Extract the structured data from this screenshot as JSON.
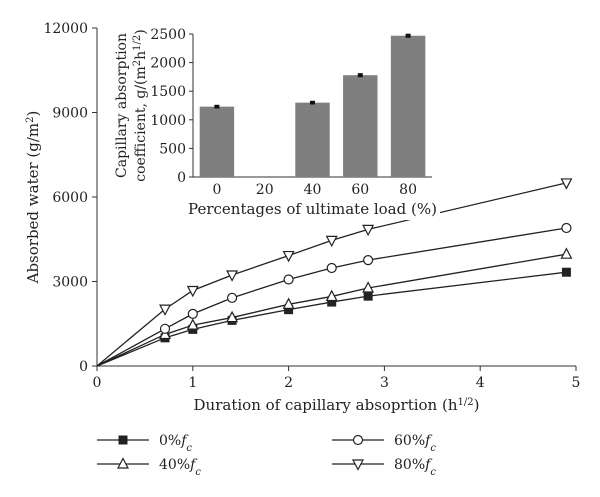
{
  "chart_data": [
    {
      "type": "line",
      "xlabel_main": "Duration of capillary absoprtion (h",
      "xlabel_sup": "1/2",
      "xlabel_end": ")",
      "ylabel_main": "Absorbed water (g/m",
      "ylabel_sup": "2",
      "ylabel_end": ")",
      "xlim": [
        0,
        5
      ],
      "ylim": [
        0,
        12000
      ],
      "xticks": [
        0,
        1,
        2,
        3,
        4,
        5
      ],
      "yticks": [
        0,
        3000,
        6000,
        9000,
        12000
      ],
      "grid": false,
      "legend_position": "bottom",
      "series": [
        {
          "name": "0%",
          "name_sub": "c",
          "marker": "square",
          "x": [
            0,
            0.71,
            1.0,
            1.41,
            2.0,
            2.45,
            2.83,
            4.9
          ],
          "y": [
            0,
            1000,
            1300,
            1620,
            2000,
            2270,
            2480,
            3330
          ]
        },
        {
          "name": "40%",
          "name_sub": "c",
          "marker": "triangle-up",
          "x": [
            0,
            0.71,
            1.0,
            1.41,
            2.0,
            2.45,
            2.83,
            4.9
          ],
          "y": [
            0,
            1120,
            1450,
            1720,
            2190,
            2470,
            2770,
            3970
          ]
        },
        {
          "name": "60%",
          "name_sub": "c",
          "marker": "circle-open",
          "x": [
            0,
            0.71,
            1.0,
            1.41,
            2.0,
            2.45,
            2.83,
            4.9
          ],
          "y": [
            0,
            1320,
            1850,
            2420,
            3070,
            3480,
            3760,
            4900
          ]
        },
        {
          "name": "80%",
          "name_sub": "c",
          "marker": "triangle-down",
          "x": [
            0,
            0.71,
            1.0,
            1.41,
            2.0,
            2.45,
            2.83,
            4.9
          ],
          "y": [
            0,
            2020,
            2680,
            3230,
            3920,
            4460,
            4850,
            6500
          ]
        }
      ]
    },
    {
      "type": "bar",
      "inset": true,
      "categories": [
        "0",
        "20",
        "40",
        "60",
        "80"
      ],
      "values": [
        1230,
        0,
        1300,
        1780,
        2470
      ],
      "errors": [
        15,
        0,
        15,
        18,
        18
      ],
      "xlabel": "Percentages of ultimate load (%)",
      "ylabel_line1": "Capillary absorption",
      "ylabel_line2_main": "coefficient, g/(m",
      "ylabel_line2_sup": "2",
      "ylabel_line2_mid": "h",
      "ylabel_line2_sup2": "1/2",
      "ylabel_line2_end": ")",
      "ylim": [
        0,
        2500
      ],
      "yticks": [
        0,
        500,
        1000,
        1500,
        2000,
        2500
      ],
      "bar_color": "#7f7f7f"
    }
  ],
  "colors": {
    "line": "#222222",
    "bar": "#7f7f7f"
  }
}
